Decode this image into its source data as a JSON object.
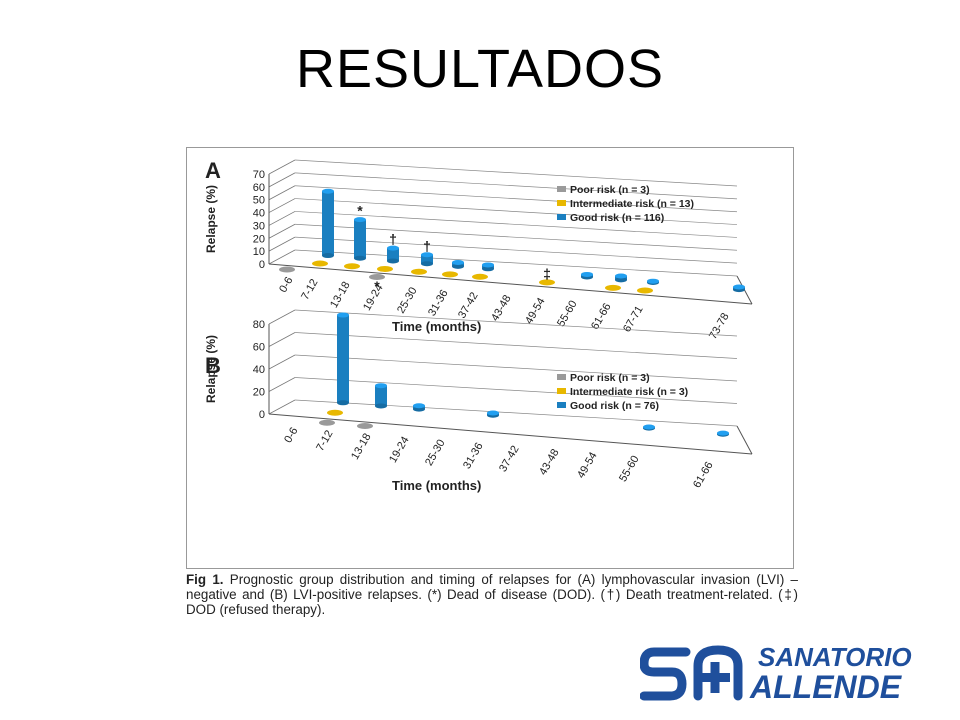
{
  "slide": {
    "title": "RESULTADOS"
  },
  "logo": {
    "line1": "SANATORIO",
    "line2": "ALLENDE",
    "color": "#1f4f9c"
  },
  "caption": {
    "label": "Fig 1.",
    "text": "Prognostic group distribution and timing of relapses for (A) lymphovascular invasion (LVI) –negative and (B) LVI-positive relapses. (*) Dead of disease (DOD). (†) Death treatment-related. (‡) DOD (refused therapy)."
  },
  "colors": {
    "poor": "#9a9a9a",
    "intermediate": "#e8b800",
    "good": "#1a7fc0"
  },
  "chart_data": [
    {
      "panel_label": "A",
      "type": "bar",
      "ylabel": "Relapse (%)",
      "xlabel": "Time (months)",
      "yticks": [
        0,
        10,
        20,
        30,
        40,
        50,
        60,
        70
      ],
      "ylim": [
        0,
        70
      ],
      "grid": true,
      "legend_position": "top-right",
      "categories": [
        "0-6",
        "7-12",
        "13-18",
        "19-24",
        "25-30",
        "31-36",
        "37-42",
        "43-48",
        "49-54",
        "55-60",
        "61-66",
        "67-71",
        "73-78"
      ],
      "series": [
        {
          "name": "Poor risk (n = 3)",
          "color_key": "poor",
          "values": [
            0,
            0,
            0,
            0,
            0,
            0,
            0,
            0,
            0,
            0,
            0,
            0,
            0
          ]
        },
        {
          "name": "Intermediate risk (n = 13)",
          "color_key": "intermediate",
          "values": [
            0,
            0,
            0,
            0,
            0,
            0,
            0,
            0,
            0,
            0,
            0,
            0,
            0
          ]
        },
        {
          "name": "Good risk (n = 116)",
          "color_key": "good",
          "values": [
            0,
            50,
            30,
            10,
            7,
            3,
            3,
            0,
            0,
            2,
            3,
            1,
            2
          ]
        }
      ],
      "visible_disks": [
        {
          "series": "poor",
          "category": "0-6"
        },
        {
          "series": "poor",
          "category": "19-24"
        },
        {
          "series": "intermediate",
          "category": "7-12"
        },
        {
          "series": "intermediate",
          "category": "13-18"
        },
        {
          "series": "intermediate",
          "category": "19-24"
        },
        {
          "series": "intermediate",
          "category": "25-30"
        },
        {
          "series": "intermediate",
          "category": "31-36"
        },
        {
          "series": "intermediate",
          "category": "37-42"
        },
        {
          "series": "intermediate",
          "category": "49-54"
        },
        {
          "series": "intermediate",
          "category": "61-66"
        },
        {
          "series": "intermediate",
          "category": "67-71"
        }
      ],
      "annotations": [
        {
          "symbol": "*",
          "series": "good",
          "category": "13-18"
        },
        {
          "symbol": "†",
          "series": "good",
          "category": "19-24"
        },
        {
          "symbol": "*",
          "series": "poor",
          "category": "19-24"
        },
        {
          "symbol": "†",
          "series": "good",
          "category": "25-30"
        },
        {
          "symbol": "‡",
          "series": "intermediate",
          "category": "49-54"
        }
      ]
    },
    {
      "panel_label": "B",
      "type": "bar",
      "ylabel": "Relapse (%)",
      "xlabel": "Time (months)",
      "yticks": [
        0,
        20,
        40,
        60,
        80
      ],
      "ylim": [
        0,
        80
      ],
      "grid": true,
      "legend_position": "top-right",
      "categories": [
        "0-6",
        "7-12",
        "13-18",
        "19-24",
        "25-30",
        "31-36",
        "37-42",
        "43-48",
        "49-54",
        "55-60",
        "61-66"
      ],
      "series": [
        {
          "name": "Poor risk (n = 3)",
          "color_key": "poor",
          "values": [
            0,
            0,
            0,
            0,
            0,
            0,
            0,
            0,
            0,
            0,
            0
          ]
        },
        {
          "name": "Intermediate risk (n = 3)",
          "color_key": "intermediate",
          "values": [
            0,
            0,
            0,
            0,
            0,
            0,
            0,
            0,
            0,
            0,
            0
          ]
        },
        {
          "name": "Good risk (n = 76)",
          "color_key": "good",
          "values": [
            0,
            78,
            18,
            3,
            0,
            2,
            0,
            0,
            0,
            1,
            1
          ]
        }
      ],
      "visible_disks": [
        {
          "series": "poor",
          "category": "7-12"
        },
        {
          "series": "poor",
          "category": "13-18"
        },
        {
          "series": "intermediate",
          "category": "7-12"
        }
      ],
      "annotations": []
    }
  ]
}
